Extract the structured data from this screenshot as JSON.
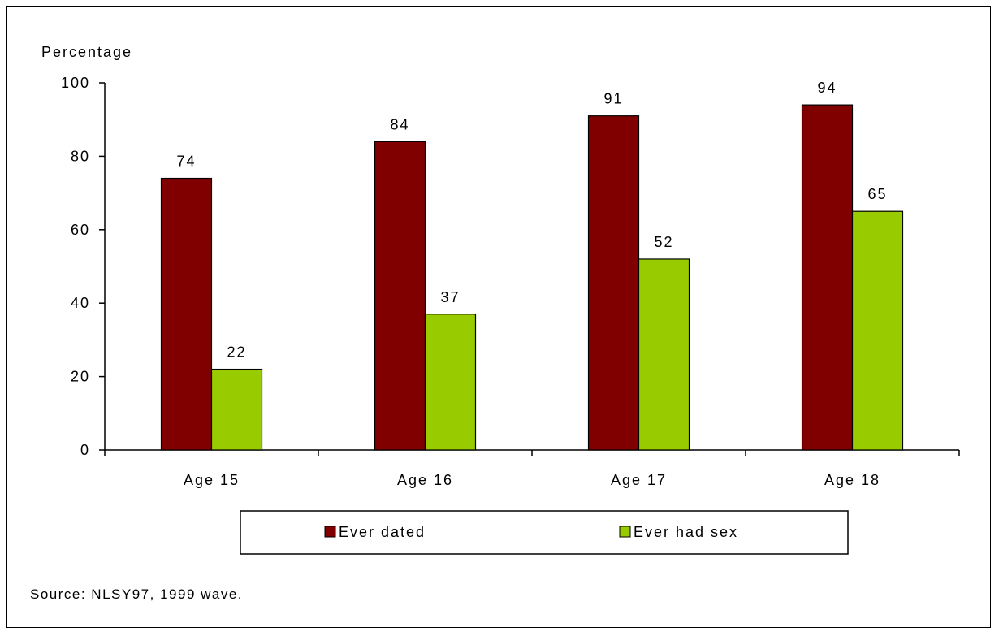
{
  "chart_data": {
    "type": "bar",
    "ylabel": "Percentage",
    "xlabel": "",
    "ylim": [
      0,
      100
    ],
    "yticks": [
      0,
      20,
      40,
      60,
      80,
      100
    ],
    "categories": [
      "Age 15",
      "Age 16",
      "Age 17",
      "Age 18"
    ],
    "series": [
      {
        "name": "Ever dated",
        "color": "#800000",
        "values": [
          74,
          84,
          91,
          94
        ]
      },
      {
        "name": "Ever had sex",
        "color": "#99CC00",
        "values": [
          22,
          37,
          52,
          65
        ]
      }
    ],
    "data_labels": true,
    "grid": false,
    "legend": "bottom"
  },
  "source": "Source:  NLSY97, 1999 wave."
}
